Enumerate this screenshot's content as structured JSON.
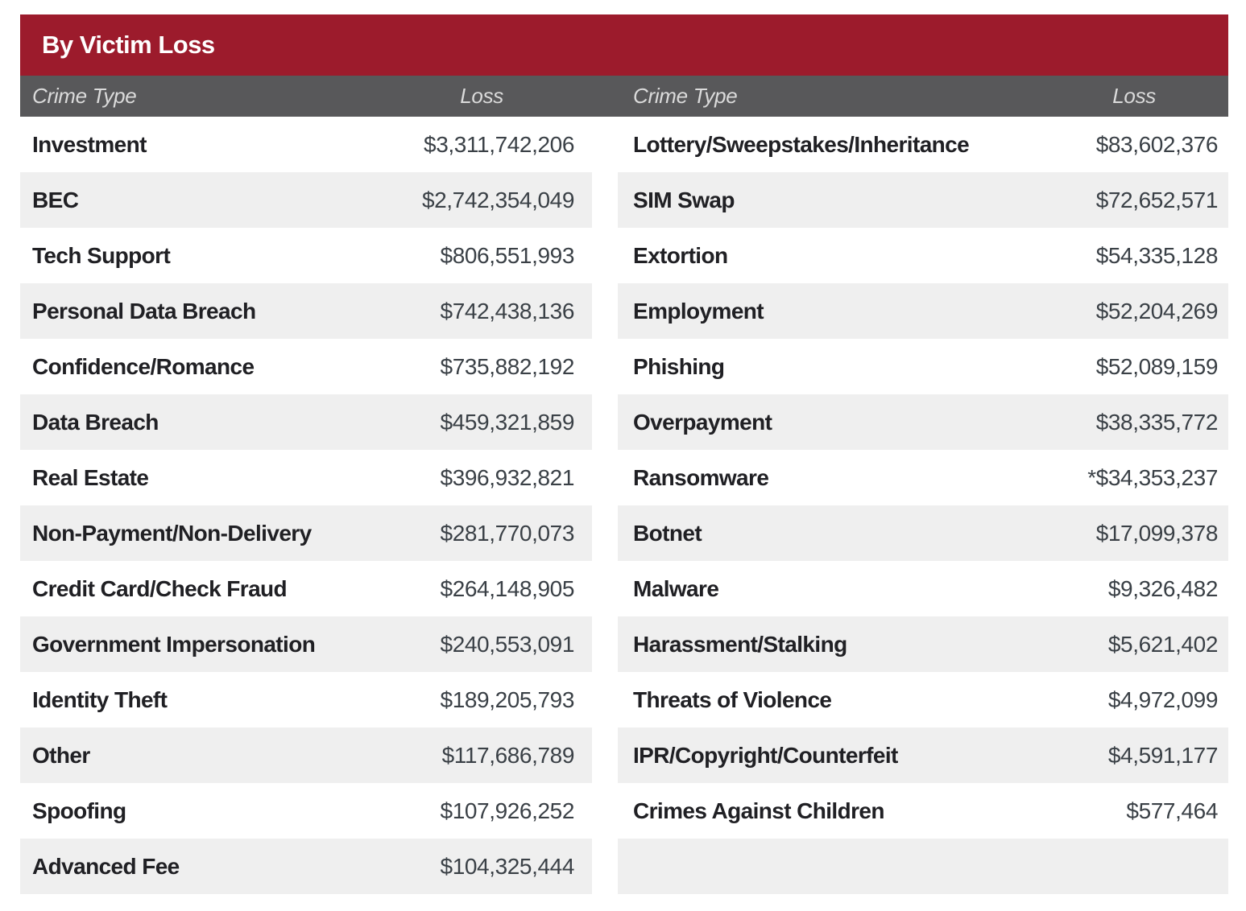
{
  "title": "By Victim Loss",
  "columns": {
    "crime_type": "Crime Type",
    "loss": "Loss"
  },
  "left_rows": [
    {
      "crime_type": "Investment",
      "loss": "$3,311,742,206"
    },
    {
      "crime_type": "BEC",
      "loss": "$2,742,354,049"
    },
    {
      "crime_type": "Tech Support",
      "loss": "$806,551,993"
    },
    {
      "crime_type": "Personal Data Breach",
      "loss": "$742,438,136"
    },
    {
      "crime_type": "Confidence/Romance",
      "loss": "$735,882,192"
    },
    {
      "crime_type": "Data Breach",
      "loss": "$459,321,859"
    },
    {
      "crime_type": "Real Estate",
      "loss": "$396,932,821"
    },
    {
      "crime_type": "Non-Payment/Non-Delivery",
      "loss": "$281,770,073"
    },
    {
      "crime_type": "Credit Card/Check Fraud",
      "loss": "$264,148,905"
    },
    {
      "crime_type": "Government Impersonation",
      "loss": "$240,553,091"
    },
    {
      "crime_type": "Identity Theft",
      "loss": "$189,205,793"
    },
    {
      "crime_type": "Other",
      "loss": "$117,686,789"
    },
    {
      "crime_type": "Spoofing",
      "loss": "$107,926,252"
    },
    {
      "crime_type": "Advanced Fee",
      "loss": "$104,325,444"
    }
  ],
  "right_rows": [
    {
      "crime_type": "Lottery/Sweepstakes/Inheritance",
      "loss": "$83,602,376"
    },
    {
      "crime_type": "SIM Swap",
      "loss": "$72,652,571"
    },
    {
      "crime_type": "Extortion",
      "loss": "$54,335,128"
    },
    {
      "crime_type": "Employment",
      "loss": "$52,204,269"
    },
    {
      "crime_type": "Phishing",
      "loss": "$52,089,159"
    },
    {
      "crime_type": "Overpayment",
      "loss": "$38,335,772"
    },
    {
      "crime_type": "Ransomware",
      "loss": "*$34,353,237"
    },
    {
      "crime_type": "Botnet",
      "loss": "$17,099,378"
    },
    {
      "crime_type": "Malware",
      "loss": "$9,326,482"
    },
    {
      "crime_type": "Harassment/Stalking",
      "loss": "$5,621,402"
    },
    {
      "crime_type": "Threats of Violence",
      "loss": "$4,972,099"
    },
    {
      "crime_type": "IPR/Copyright/Counterfeit",
      "loss": "$4,591,177"
    },
    {
      "crime_type": "Crimes Against Children",
      "loss": "$577,464"
    },
    {
      "crime_type": "",
      "loss": ""
    }
  ],
  "colors": {
    "title_bar_red": "#9C1B2C",
    "header_gray": "#58585A",
    "row_shade_gray": "#EFEFEF"
  }
}
